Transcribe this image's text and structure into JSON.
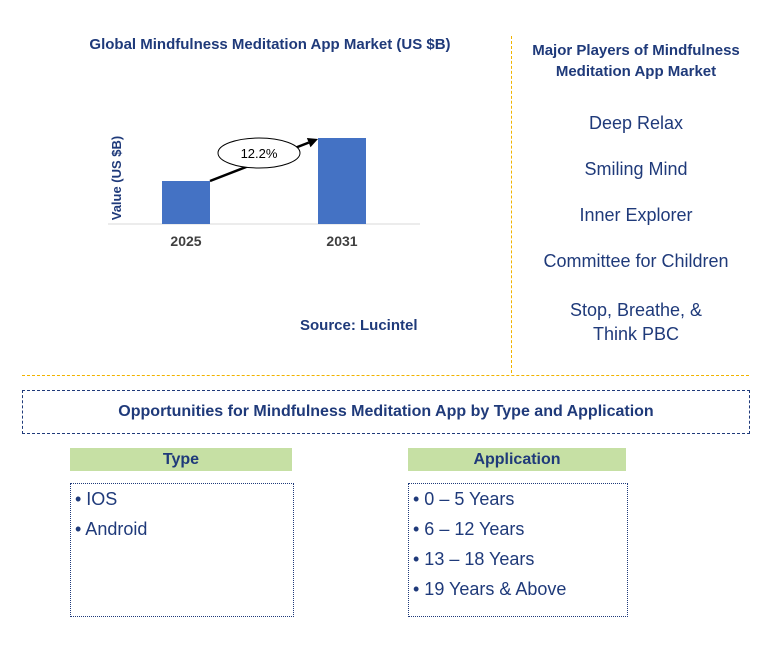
{
  "chart_data": {
    "type": "bar",
    "title": "Global Mindfulness Meditation App Market (US $B)",
    "ylabel": "Value (US $B)",
    "categories": [
      "2025",
      "2031"
    ],
    "values": [
      1.0,
      2.0
    ],
    "annotation": "12.2%",
    "bar_color": "#4472c4",
    "source": "Source: Lucintel"
  },
  "players": {
    "title": "Major Players of Mindfulness Meditation App Market",
    "items": [
      "Deep Relax",
      "Smiling Mind",
      "Inner Explorer",
      "Committee for Children",
      "Stop, Breathe, & Think PBC"
    ]
  },
  "opportunities": {
    "title": "Opportunities for Mindfulness Meditation App by Type and Application",
    "type_header": "Type",
    "type_items": [
      "• IOS",
      "• Android"
    ],
    "application_header": "Application",
    "application_items": [
      "• 0 – 5 Years",
      "• 6 – 12 Years",
      "• 13 – 18 Years",
      "• 19 Years & Above"
    ]
  }
}
